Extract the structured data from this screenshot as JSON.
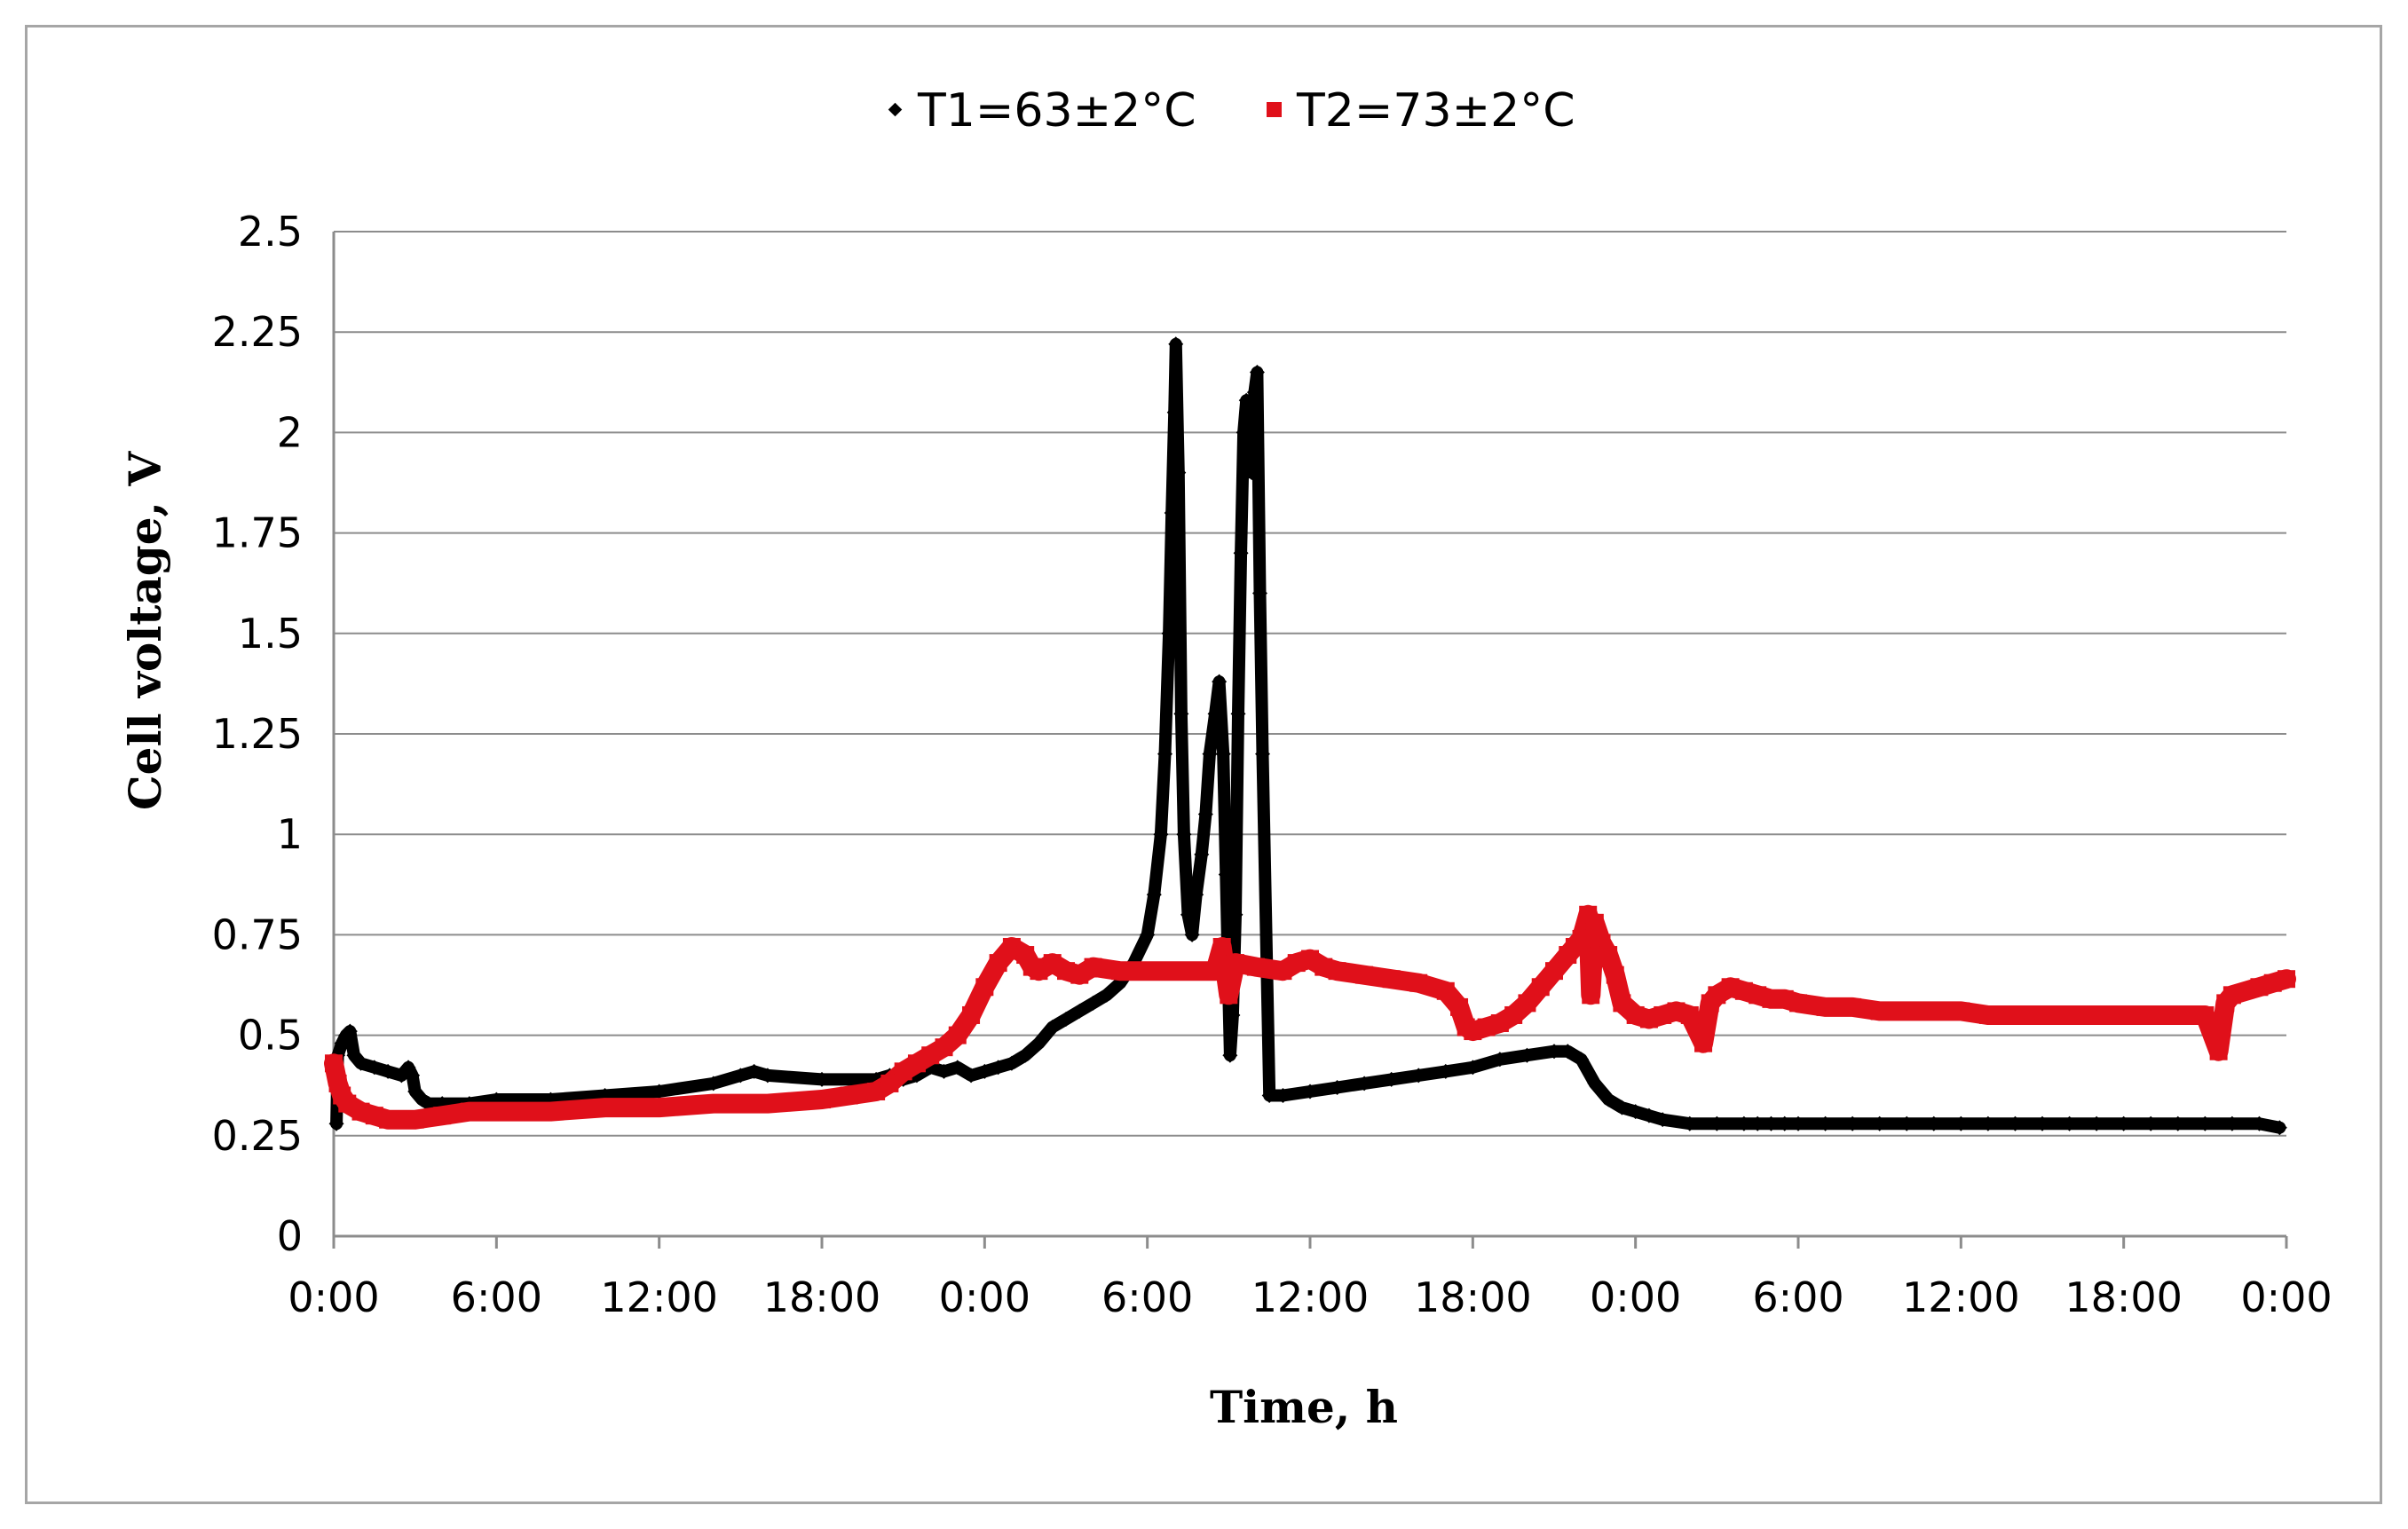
{
  "colors": {
    "t1": "#000000",
    "t2": "#e0101a",
    "grid": "#8c8c8c",
    "axis": "#8c8c8c"
  },
  "chart_data": {
    "type": "scatter",
    "title": "",
    "xlabel": "Time, h",
    "ylabel": "Cell voltage, V",
    "xlim": [
      0,
      144
    ],
    "x_unit": "hours",
    "ylim": [
      0,
      2.5
    ],
    "grid": true,
    "legend_position": "top-center",
    "x_tick_labels": [
      "0:00",
      "6:00",
      "12:00",
      "18:00",
      "0:00",
      "6:00",
      "12:00",
      "18:00",
      "0:00",
      "6:00",
      "12:00",
      "18:00",
      "0:00"
    ],
    "y_tick_labels": [
      "0",
      "0.25",
      "0.5",
      "0.75",
      "1",
      "1.25",
      "1.5",
      "1.75",
      "2",
      "2.25",
      "2.5"
    ],
    "y_ticks": [
      0,
      0.25,
      0.5,
      0.75,
      1,
      1.25,
      1.5,
      1.75,
      2,
      2.25,
      2.5
    ],
    "series": [
      {
        "name": "T1=63±2°C",
        "color": "#000000",
        "marker": "diamond",
        "points": [
          [
            0.2,
            0.28
          ],
          [
            0.3,
            0.45
          ],
          [
            0.6,
            0.48
          ],
          [
            0.9,
            0.5
          ],
          [
            1.2,
            0.51
          ],
          [
            1.5,
            0.45
          ],
          [
            2,
            0.43
          ],
          [
            3,
            0.42
          ],
          [
            4,
            0.41
          ],
          [
            5,
            0.4
          ],
          [
            5.5,
            0.42
          ],
          [
            5.8,
            0.4
          ],
          [
            6,
            0.36
          ],
          [
            6.5,
            0.34
          ],
          [
            7,
            0.33
          ],
          [
            8,
            0.33
          ],
          [
            10,
            0.33
          ],
          [
            12,
            0.34
          ],
          [
            16,
            0.34
          ],
          [
            20,
            0.35
          ],
          [
            24,
            0.36
          ],
          [
            28,
            0.38
          ],
          [
            30,
            0.4
          ],
          [
            31,
            0.41
          ],
          [
            32,
            0.4
          ],
          [
            36,
            0.39
          ],
          [
            40,
            0.39
          ],
          [
            41,
            0.4
          ],
          [
            42,
            0.39
          ],
          [
            43,
            0.4
          ],
          [
            44,
            0.42
          ],
          [
            45,
            0.41
          ],
          [
            46,
            0.42
          ],
          [
            47,
            0.4
          ],
          [
            48,
            0.41
          ],
          [
            49,
            0.42
          ],
          [
            50,
            0.43
          ],
          [
            51,
            0.45
          ],
          [
            52,
            0.48
          ],
          [
            53,
            0.52
          ],
          [
            54,
            0.54
          ],
          [
            55,
            0.56
          ],
          [
            56,
            0.58
          ],
          [
            57,
            0.6
          ],
          [
            58,
            0.63
          ],
          [
            59,
            0.68
          ],
          [
            60,
            0.75
          ],
          [
            60.5,
            0.85
          ],
          [
            61,
            1.0
          ],
          [
            61.3,
            1.2
          ],
          [
            61.6,
            1.5
          ],
          [
            61.8,
            1.8
          ],
          [
            62,
            2.05
          ],
          [
            62.1,
            2.22
          ],
          [
            62.3,
            1.9
          ],
          [
            62.5,
            1.3
          ],
          [
            62.7,
            1.0
          ],
          [
            63,
            0.8
          ],
          [
            63.3,
            0.75
          ],
          [
            63.6,
            0.85
          ],
          [
            64,
            0.95
          ],
          [
            64.3,
            1.05
          ],
          [
            64.6,
            1.2
          ],
          [
            65,
            1.3
          ],
          [
            65.3,
            1.38
          ],
          [
            65.6,
            1.2
          ],
          [
            65.8,
            0.9
          ],
          [
            66,
            0.6
          ],
          [
            66.1,
            0.45
          ],
          [
            66.3,
            0.55
          ],
          [
            66.5,
            0.8
          ],
          [
            66.7,
            1.3
          ],
          [
            66.9,
            1.7
          ],
          [
            67.1,
            2.0
          ],
          [
            67.3,
            2.08
          ],
          [
            67.5,
            2.05
          ],
          [
            67.7,
            1.9
          ],
          [
            67.9,
            2.1
          ],
          [
            68.1,
            2.15
          ],
          [
            68.3,
            1.6
          ],
          [
            68.5,
            1.2
          ],
          [
            69,
            0.35
          ],
          [
            70,
            0.35
          ],
          [
            72,
            0.36
          ],
          [
            74,
            0.37
          ],
          [
            76,
            0.38
          ],
          [
            78,
            0.39
          ],
          [
            80,
            0.4
          ],
          [
            82,
            0.41
          ],
          [
            84,
            0.42
          ],
          [
            86,
            0.44
          ],
          [
            88,
            0.45
          ],
          [
            90,
            0.46
          ],
          [
            91,
            0.46
          ],
          [
            92,
            0.44
          ],
          [
            93,
            0.38
          ],
          [
            94,
            0.34
          ],
          [
            95,
            0.32
          ],
          [
            96,
            0.31
          ],
          [
            97,
            0.3
          ],
          [
            98,
            0.29
          ],
          [
            100,
            0.28
          ],
          [
            102,
            0.28
          ],
          [
            104,
            0.28
          ],
          [
            105,
            0.28
          ],
          [
            106,
            0.28
          ],
          [
            107,
            0.28
          ],
          [
            108,
            0.28
          ],
          [
            110,
            0.28
          ],
          [
            112,
            0.28
          ],
          [
            114,
            0.28
          ],
          [
            116,
            0.28
          ],
          [
            118,
            0.28
          ],
          [
            120,
            0.28
          ],
          [
            122,
            0.28
          ],
          [
            124,
            0.28
          ],
          [
            126,
            0.28
          ],
          [
            128,
            0.28
          ],
          [
            130,
            0.28
          ],
          [
            132,
            0.28
          ],
          [
            134,
            0.28
          ],
          [
            136,
            0.28
          ],
          [
            138,
            0.28
          ],
          [
            140,
            0.28
          ],
          [
            142,
            0.28
          ],
          [
            143.5,
            0.27
          ]
        ]
      },
      {
        "name": "T2=73±2°C",
        "color": "#e0101a",
        "marker": "square",
        "points": [
          [
            0,
            0.43
          ],
          [
            0.3,
            0.38
          ],
          [
            0.6,
            0.35
          ],
          [
            1,
            0.33
          ],
          [
            2,
            0.31
          ],
          [
            3,
            0.3
          ],
          [
            4,
            0.29
          ],
          [
            5,
            0.29
          ],
          [
            6,
            0.29
          ],
          [
            8,
            0.3
          ],
          [
            10,
            0.31
          ],
          [
            12,
            0.31
          ],
          [
            16,
            0.31
          ],
          [
            20,
            0.32
          ],
          [
            24,
            0.32
          ],
          [
            28,
            0.33
          ],
          [
            32,
            0.33
          ],
          [
            36,
            0.34
          ],
          [
            38,
            0.35
          ],
          [
            40,
            0.36
          ],
          [
            41,
            0.38
          ],
          [
            42,
            0.41
          ],
          [
            43,
            0.43
          ],
          [
            44,
            0.45
          ],
          [
            45,
            0.47
          ],
          [
            46,
            0.5
          ],
          [
            47,
            0.55
          ],
          [
            48,
            0.62
          ],
          [
            49,
            0.68
          ],
          [
            50,
            0.72
          ],
          [
            51,
            0.7
          ],
          [
            51.5,
            0.67
          ],
          [
            52,
            0.66
          ],
          [
            53,
            0.68
          ],
          [
            54,
            0.66
          ],
          [
            55,
            0.65
          ],
          [
            56,
            0.67
          ],
          [
            58,
            0.66
          ],
          [
            60,
            0.66
          ],
          [
            62,
            0.66
          ],
          [
            64,
            0.66
          ],
          [
            65,
            0.66
          ],
          [
            65.5,
            0.72
          ],
          [
            66,
            0.6
          ],
          [
            66.5,
            0.68
          ],
          [
            68,
            0.67
          ],
          [
            70,
            0.66
          ],
          [
            71,
            0.68
          ],
          [
            72,
            0.69
          ],
          [
            73,
            0.67
          ],
          [
            74,
            0.66
          ],
          [
            76,
            0.65
          ],
          [
            78,
            0.64
          ],
          [
            80,
            0.63
          ],
          [
            82,
            0.61
          ],
          [
            83,
            0.57
          ],
          [
            83.5,
            0.52
          ],
          [
            84,
            0.51
          ],
          [
            85,
            0.52
          ],
          [
            86,
            0.53
          ],
          [
            87,
            0.55
          ],
          [
            88,
            0.58
          ],
          [
            89,
            0.62
          ],
          [
            90,
            0.66
          ],
          [
            91,
            0.7
          ],
          [
            91.5,
            0.72
          ],
          [
            92,
            0.74
          ],
          [
            92.5,
            0.8
          ],
          [
            92.7,
            0.6
          ],
          [
            93,
            0.78
          ],
          [
            93.5,
            0.73
          ],
          [
            94,
            0.7
          ],
          [
            94.5,
            0.65
          ],
          [
            95,
            0.58
          ],
          [
            96,
            0.55
          ],
          [
            97,
            0.54
          ],
          [
            98,
            0.55
          ],
          [
            99,
            0.56
          ],
          [
            100,
            0.55
          ],
          [
            101,
            0.48
          ],
          [
            101.5,
            0.58
          ],
          [
            102,
            0.6
          ],
          [
            103,
            0.62
          ],
          [
            104,
            0.61
          ],
          [
            105,
            0.6
          ],
          [
            106,
            0.59
          ],
          [
            107,
            0.59
          ],
          [
            108,
            0.58
          ],
          [
            110,
            0.57
          ],
          [
            112,
            0.57
          ],
          [
            114,
            0.56
          ],
          [
            116,
            0.56
          ],
          [
            118,
            0.56
          ],
          [
            120,
            0.56
          ],
          [
            122,
            0.55
          ],
          [
            124,
            0.55
          ],
          [
            126,
            0.55
          ],
          [
            128,
            0.55
          ],
          [
            130,
            0.55
          ],
          [
            132,
            0.55
          ],
          [
            134,
            0.55
          ],
          [
            136,
            0.55
          ],
          [
            138,
            0.55
          ],
          [
            139,
            0.46
          ],
          [
            139.5,
            0.58
          ],
          [
            140,
            0.6
          ],
          [
            142,
            0.62
          ],
          [
            143,
            0.63
          ],
          [
            144,
            0.64
          ]
        ]
      }
    ]
  }
}
